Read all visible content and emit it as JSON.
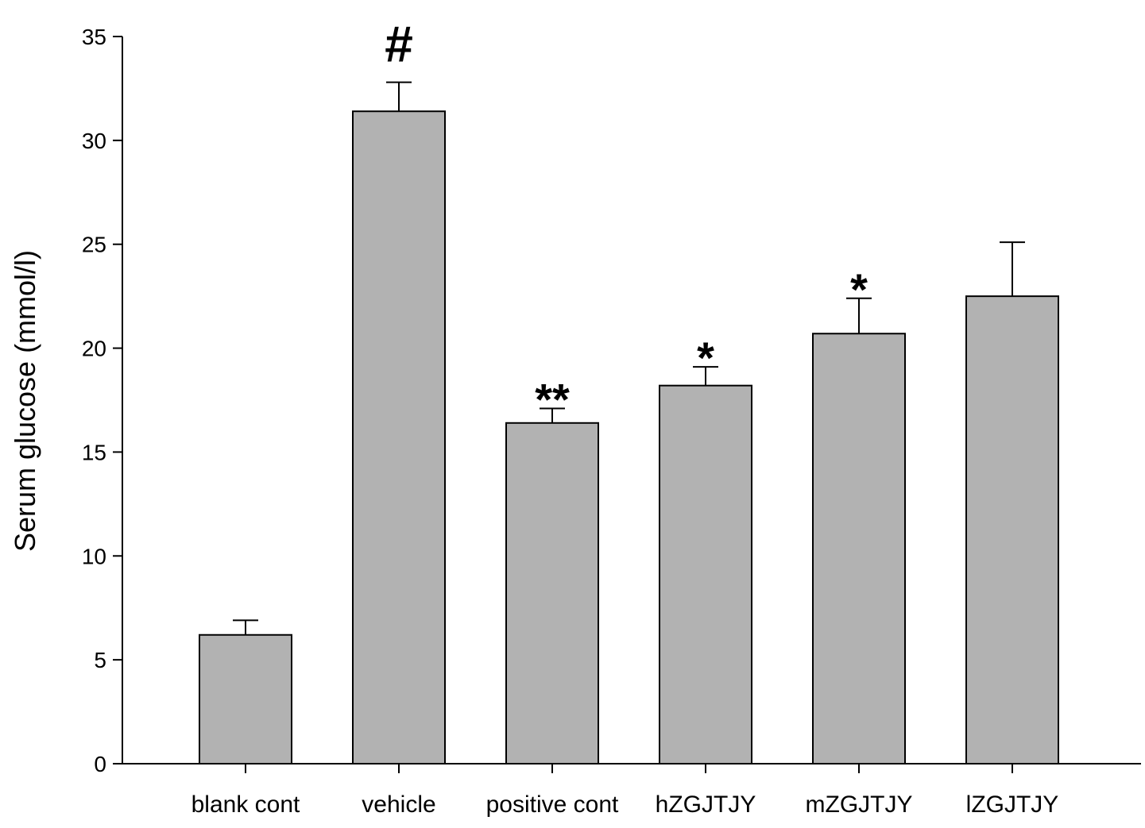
{
  "chart_data": {
    "type": "bar",
    "title": "",
    "xlabel": "",
    "ylabel": "Serum glucose (mmol/l)",
    "ylim": [
      0,
      35
    ],
    "yticks": [
      0,
      5,
      10,
      15,
      20,
      25,
      30,
      35
    ],
    "ytick_labels": [
      "0",
      "5",
      "10",
      "15",
      "20",
      "25",
      "30",
      "35"
    ],
    "categories": [
      "blank cont",
      "vehicle",
      "positive cont",
      "hZGJTJY",
      "mZGJTJY",
      "lZGJTJY"
    ],
    "values": [
      6.2,
      31.4,
      16.4,
      18.2,
      20.7,
      22.5
    ],
    "errors": [
      0.7,
      1.4,
      0.7,
      0.9,
      1.7,
      2.6
    ],
    "annotations": [
      "",
      "#",
      "**",
      "*",
      "*",
      ""
    ],
    "grid": false,
    "legend": "none",
    "bar_color": "#b2b2b2",
    "edge_color": "#000000"
  }
}
